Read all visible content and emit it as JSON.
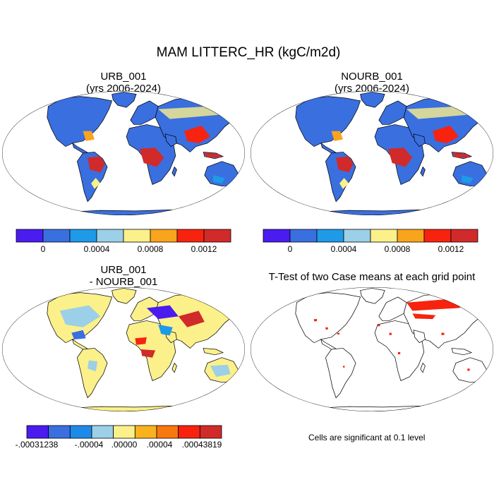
{
  "title": "MAM LITTERC_HR (kgC/m2d)",
  "panels": {
    "top_left": {
      "title_line1": "URB_001",
      "title_line2": "(yrs 2006-2024)"
    },
    "top_right": {
      "title_line1": "NOURB_001",
      "title_line2": "(yrs 2006-2024)"
    },
    "bottom_left": {
      "title_line1": "URB_001",
      "title_line2": "- NOURB_001"
    },
    "bottom_right": {
      "title_line1": "T-Test of two Case means at each grid point"
    }
  },
  "colorbar_top": {
    "colors": [
      "#4a1cf0",
      "#3a6fe0",
      "#1e9ae8",
      "#9ccfe8",
      "#fbf08a",
      "#f9a41d",
      "#f7230f",
      "#d12a2a"
    ],
    "tick_labels": [
      "0",
      "0.0004",
      "0.0008",
      "0.0012"
    ]
  },
  "colorbar_bottom": {
    "colors": [
      "#4a1cf0",
      "#3a6fe0",
      "#1e8ae8",
      "#9ccfe8",
      "#fbf08a",
      "#f9b21d",
      "#f7780f",
      "#f7230f",
      "#d12a2a"
    ],
    "tick_labels": [
      "-.00031238",
      "-.00004",
      ".00000",
      ".00004",
      ".00043819"
    ]
  },
  "significance_note": "Cells are significant at 0.1 level"
}
